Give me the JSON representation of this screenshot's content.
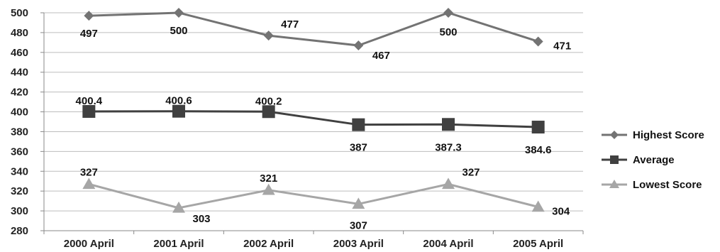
{
  "chart_data": {
    "type": "line",
    "title": "",
    "xlabel": "",
    "ylabel": "",
    "categories": [
      "2000 April",
      "2001 April",
      "2002 April",
      "2003 April",
      "2004 April",
      "2005 April"
    ],
    "ylim": [
      280,
      500
    ],
    "ytick_step": 20,
    "yticks": [
      "280",
      "300",
      "320",
      "340",
      "360",
      "380",
      "400",
      "420",
      "440",
      "460",
      "480",
      "500"
    ],
    "grid": true,
    "legend_position": "right",
    "series": [
      {
        "name": "Highest Score",
        "values": [
          497,
          500,
          477,
          467,
          500,
          471
        ],
        "labels": [
          "497",
          "500",
          "477",
          "467",
          "500",
          "471"
        ],
        "color": "#737373",
        "marker": "diamond"
      },
      {
        "name": "Average",
        "values": [
          400.4,
          400.6,
          400.2,
          387,
          387.3,
          384.6
        ],
        "labels": [
          "400.4",
          "400.6",
          "400.2",
          "387",
          "387.3",
          "384.6"
        ],
        "color": "#404040",
        "marker": "square"
      },
      {
        "name": "Lowest Score",
        "values": [
          327,
          303,
          321,
          307,
          327,
          304
        ],
        "labels": [
          "327",
          "303",
          "321",
          "307",
          "327",
          "304"
        ],
        "color": "#a6a6a6",
        "marker": "triangle"
      }
    ]
  }
}
